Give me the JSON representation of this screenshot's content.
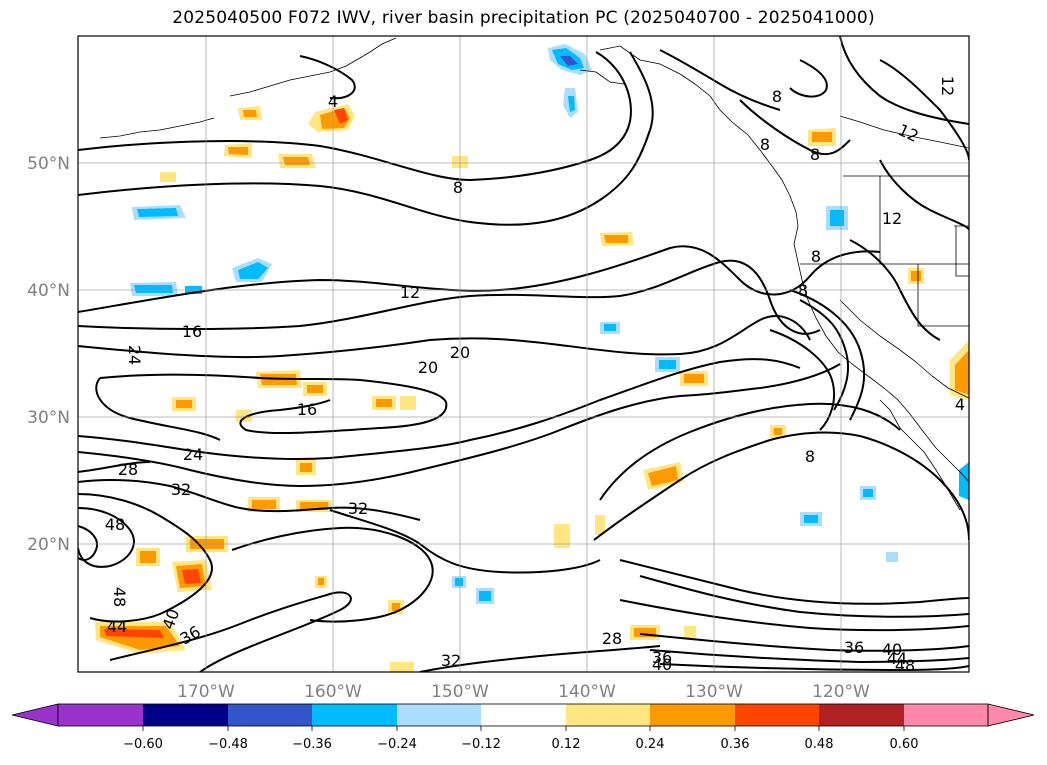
{
  "title": "2025040500 F072 IWV, river basin precipitation PC (2025040700 - 2025041000)",
  "map": {
    "lon_range": [
      -180,
      -110
    ],
    "lat_range": [
      10,
      60
    ],
    "lon_ticks": [
      "170°W",
      "160°W",
      "150°W",
      "140°W",
      "130°W",
      "120°W"
    ],
    "lat_ticks": [
      "50°N",
      "40°N",
      "30°N",
      "20°N"
    ],
    "grid": true,
    "contour_labels": [
      "8",
      "12",
      "16",
      "20",
      "24",
      "28",
      "32",
      "36",
      "40",
      "44",
      "48",
      "4"
    ]
  },
  "colorbar": {
    "ticks": [
      "−0.60",
      "−0.48",
      "−0.36",
      "−0.24",
      "−0.12",
      "0.12",
      "0.24",
      "0.36",
      "0.48",
      "0.60"
    ],
    "colors": [
      "#9933cc",
      "#000088",
      "#3355cc",
      "#00bbff",
      "#aaddff",
      "#ffffff",
      "#ffe680",
      "#ff9900",
      "#ff4400",
      "#b22222",
      "#ff88aa"
    ]
  }
}
